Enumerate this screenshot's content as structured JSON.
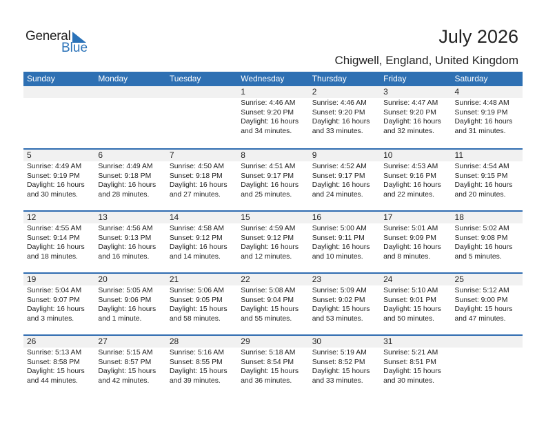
{
  "logo": {
    "text1": "General",
    "text2": "Blue",
    "color": "#2a72b8"
  },
  "title": "July 2026",
  "subtitle": "Chigwell, England, United Kingdom",
  "header_color": "#2e70b3",
  "days": [
    "Sunday",
    "Monday",
    "Tuesday",
    "Wednesday",
    "Thursday",
    "Friday",
    "Saturday"
  ],
  "weeks": [
    [
      null,
      null,
      null,
      {
        "day": "1",
        "sunrise": "Sunrise: 4:46 AM",
        "sunset": "Sunset: 9:20 PM",
        "daylight": "Daylight: 16 hours",
        "daylight2": "and 34 minutes."
      },
      {
        "day": "2",
        "sunrise": "Sunrise: 4:46 AM",
        "sunset": "Sunset: 9:20 PM",
        "daylight": "Daylight: 16 hours",
        "daylight2": "and 33 minutes."
      },
      {
        "day": "3",
        "sunrise": "Sunrise: 4:47 AM",
        "sunset": "Sunset: 9:20 PM",
        "daylight": "Daylight: 16 hours",
        "daylight2": "and 32 minutes."
      },
      {
        "day": "4",
        "sunrise": "Sunrise: 4:48 AM",
        "sunset": "Sunset: 9:19 PM",
        "daylight": "Daylight: 16 hours",
        "daylight2": "and 31 minutes."
      }
    ],
    [
      {
        "day": "5",
        "sunrise": "Sunrise: 4:49 AM",
        "sunset": "Sunset: 9:19 PM",
        "daylight": "Daylight: 16 hours",
        "daylight2": "and 30 minutes."
      },
      {
        "day": "6",
        "sunrise": "Sunrise: 4:49 AM",
        "sunset": "Sunset: 9:18 PM",
        "daylight": "Daylight: 16 hours",
        "daylight2": "and 28 minutes."
      },
      {
        "day": "7",
        "sunrise": "Sunrise: 4:50 AM",
        "sunset": "Sunset: 9:18 PM",
        "daylight": "Daylight: 16 hours",
        "daylight2": "and 27 minutes."
      },
      {
        "day": "8",
        "sunrise": "Sunrise: 4:51 AM",
        "sunset": "Sunset: 9:17 PM",
        "daylight": "Daylight: 16 hours",
        "daylight2": "and 25 minutes."
      },
      {
        "day": "9",
        "sunrise": "Sunrise: 4:52 AM",
        "sunset": "Sunset: 9:17 PM",
        "daylight": "Daylight: 16 hours",
        "daylight2": "and 24 minutes."
      },
      {
        "day": "10",
        "sunrise": "Sunrise: 4:53 AM",
        "sunset": "Sunset: 9:16 PM",
        "daylight": "Daylight: 16 hours",
        "daylight2": "and 22 minutes."
      },
      {
        "day": "11",
        "sunrise": "Sunrise: 4:54 AM",
        "sunset": "Sunset: 9:15 PM",
        "daylight": "Daylight: 16 hours",
        "daylight2": "and 20 minutes."
      }
    ],
    [
      {
        "day": "12",
        "sunrise": "Sunrise: 4:55 AM",
        "sunset": "Sunset: 9:14 PM",
        "daylight": "Daylight: 16 hours",
        "daylight2": "and 18 minutes."
      },
      {
        "day": "13",
        "sunrise": "Sunrise: 4:56 AM",
        "sunset": "Sunset: 9:13 PM",
        "daylight": "Daylight: 16 hours",
        "daylight2": "and 16 minutes."
      },
      {
        "day": "14",
        "sunrise": "Sunrise: 4:58 AM",
        "sunset": "Sunset: 9:12 PM",
        "daylight": "Daylight: 16 hours",
        "daylight2": "and 14 minutes."
      },
      {
        "day": "15",
        "sunrise": "Sunrise: 4:59 AM",
        "sunset": "Sunset: 9:12 PM",
        "daylight": "Daylight: 16 hours",
        "daylight2": "and 12 minutes."
      },
      {
        "day": "16",
        "sunrise": "Sunrise: 5:00 AM",
        "sunset": "Sunset: 9:11 PM",
        "daylight": "Daylight: 16 hours",
        "daylight2": "and 10 minutes."
      },
      {
        "day": "17",
        "sunrise": "Sunrise: 5:01 AM",
        "sunset": "Sunset: 9:09 PM",
        "daylight": "Daylight: 16 hours",
        "daylight2": "and 8 minutes."
      },
      {
        "day": "18",
        "sunrise": "Sunrise: 5:02 AM",
        "sunset": "Sunset: 9:08 PM",
        "daylight": "Daylight: 16 hours",
        "daylight2": "and 5 minutes."
      }
    ],
    [
      {
        "day": "19",
        "sunrise": "Sunrise: 5:04 AM",
        "sunset": "Sunset: 9:07 PM",
        "daylight": "Daylight: 16 hours",
        "daylight2": "and 3 minutes."
      },
      {
        "day": "20",
        "sunrise": "Sunrise: 5:05 AM",
        "sunset": "Sunset: 9:06 PM",
        "daylight": "Daylight: 16 hours",
        "daylight2": "and 1 minute."
      },
      {
        "day": "21",
        "sunrise": "Sunrise: 5:06 AM",
        "sunset": "Sunset: 9:05 PM",
        "daylight": "Daylight: 15 hours",
        "daylight2": "and 58 minutes."
      },
      {
        "day": "22",
        "sunrise": "Sunrise: 5:08 AM",
        "sunset": "Sunset: 9:04 PM",
        "daylight": "Daylight: 15 hours",
        "daylight2": "and 55 minutes."
      },
      {
        "day": "23",
        "sunrise": "Sunrise: 5:09 AM",
        "sunset": "Sunset: 9:02 PM",
        "daylight": "Daylight: 15 hours",
        "daylight2": "and 53 minutes."
      },
      {
        "day": "24",
        "sunrise": "Sunrise: 5:10 AM",
        "sunset": "Sunset: 9:01 PM",
        "daylight": "Daylight: 15 hours",
        "daylight2": "and 50 minutes."
      },
      {
        "day": "25",
        "sunrise": "Sunrise: 5:12 AM",
        "sunset": "Sunset: 9:00 PM",
        "daylight": "Daylight: 15 hours",
        "daylight2": "and 47 minutes."
      }
    ],
    [
      {
        "day": "26",
        "sunrise": "Sunrise: 5:13 AM",
        "sunset": "Sunset: 8:58 PM",
        "daylight": "Daylight: 15 hours",
        "daylight2": "and 44 minutes."
      },
      {
        "day": "27",
        "sunrise": "Sunrise: 5:15 AM",
        "sunset": "Sunset: 8:57 PM",
        "daylight": "Daylight: 15 hours",
        "daylight2": "and 42 minutes."
      },
      {
        "day": "28",
        "sunrise": "Sunrise: 5:16 AM",
        "sunset": "Sunset: 8:55 PM",
        "daylight": "Daylight: 15 hours",
        "daylight2": "and 39 minutes."
      },
      {
        "day": "29",
        "sunrise": "Sunrise: 5:18 AM",
        "sunset": "Sunset: 8:54 PM",
        "daylight": "Daylight: 15 hours",
        "daylight2": "and 36 minutes."
      },
      {
        "day": "30",
        "sunrise": "Sunrise: 5:19 AM",
        "sunset": "Sunset: 8:52 PM",
        "daylight": "Daylight: 15 hours",
        "daylight2": "and 33 minutes."
      },
      {
        "day": "31",
        "sunrise": "Sunrise: 5:21 AM",
        "sunset": "Sunset: 8:51 PM",
        "daylight": "Daylight: 15 hours",
        "daylight2": "and 30 minutes."
      },
      null
    ]
  ]
}
